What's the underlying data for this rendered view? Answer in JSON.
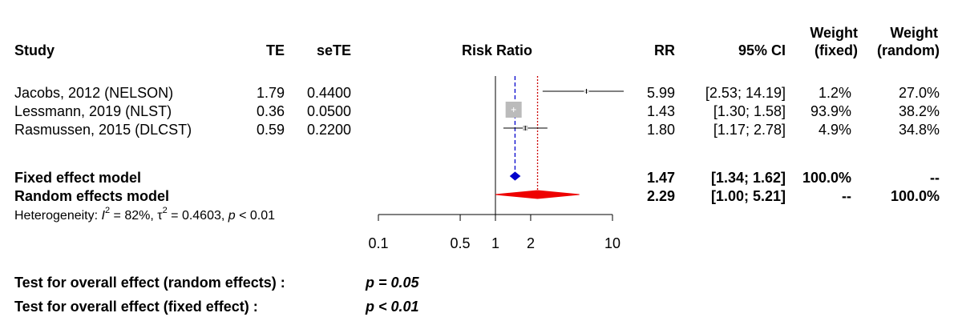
{
  "headers": {
    "study": "Study",
    "te": "TE",
    "sete": "seTE",
    "plot": "Risk Ratio",
    "rr": "RR",
    "ci": "95% CI",
    "wf_line1": "Weight",
    "wf_line2": "(fixed)",
    "wr_line1": "Weight",
    "wr_line2": "(random)"
  },
  "studies": [
    {
      "name": "Jacobs, 2012 (NELSON)",
      "te": "1.79",
      "sete": "0.4400",
      "rr": "5.99",
      "ci": "[2.53; 14.19]",
      "w_fixed": "1.2%",
      "w_random": "27.0%"
    },
    {
      "name": "Lessmann, 2019 (NLST)",
      "te": "0.36",
      "sete": "0.0500",
      "rr": "1.43",
      "ci": "[1.30;  1.58]",
      "w_fixed": "93.9%",
      "w_random": "38.2%"
    },
    {
      "name": "Rasmussen, 2015 (DLCST)",
      "te": "0.59",
      "sete": "0.2200",
      "rr": "1.80",
      "ci": "[1.17;  2.78]",
      "w_fixed": "4.9%",
      "w_random": "34.8%"
    }
  ],
  "fixed": {
    "label": "Fixed effect model",
    "rr": "1.47",
    "ci": "[1.34;  1.62]",
    "w_fixed": "100.0%",
    "w_random": "--"
  },
  "random": {
    "label": "Random effects model",
    "rr": "2.29",
    "ci": "[1.00;  5.21]",
    "w_fixed": "--",
    "w_random": "100.0%"
  },
  "heterogeneity": {
    "prefix": "Heterogeneity: ",
    "i2_sym": "I",
    "i2_val": " = 82%, ",
    "tau_sym": "τ",
    "tau_val": " = 0.4603, ",
    "p_sym": "p",
    "p_val": " < 0.01"
  },
  "axis_ticks": [
    "0.1",
    "0.5",
    "1",
    "2",
    "10"
  ],
  "tests": {
    "random_label": "Test for overall effect (random effects) :",
    "random_value": "p = 0.05",
    "fixed_label": "Test for overall effect (fixed effect) :",
    "fixed_value": "p < 0.01"
  },
  "chart_data": {
    "type": "forest",
    "title": "",
    "xlabel": "Risk Ratio",
    "xscale": "log",
    "xlim": [
      0.1,
      10
    ],
    "ticks": [
      0.1,
      0.5,
      1,
      2,
      10
    ],
    "studies": [
      {
        "name": "Jacobs, 2012 (NELSON)",
        "rr": 5.99,
        "lower": 2.53,
        "upper": 14.19,
        "weight_fixed": 1.2
      },
      {
        "name": "Lessmann, 2019 (NLST)",
        "rr": 1.43,
        "lower": 1.3,
        "upper": 1.58,
        "weight_fixed": 93.9
      },
      {
        "name": "Rasmussen, 2015 (DLCST)",
        "rr": 1.8,
        "lower": 1.17,
        "upper": 2.78,
        "weight_fixed": 4.9
      }
    ],
    "fixed": {
      "rr": 1.47,
      "lower": 1.34,
      "upper": 1.62
    },
    "random": {
      "rr": 2.29,
      "lower": 1.0,
      "upper": 5.21
    },
    "colors": {
      "fixed_line": "#0000cc",
      "fixed_diamond": "#0000cc",
      "random_line": "#cc0000",
      "random_diamond": "#ee0000",
      "square": "#bbbbbb",
      "ci_line": "#000000"
    }
  }
}
